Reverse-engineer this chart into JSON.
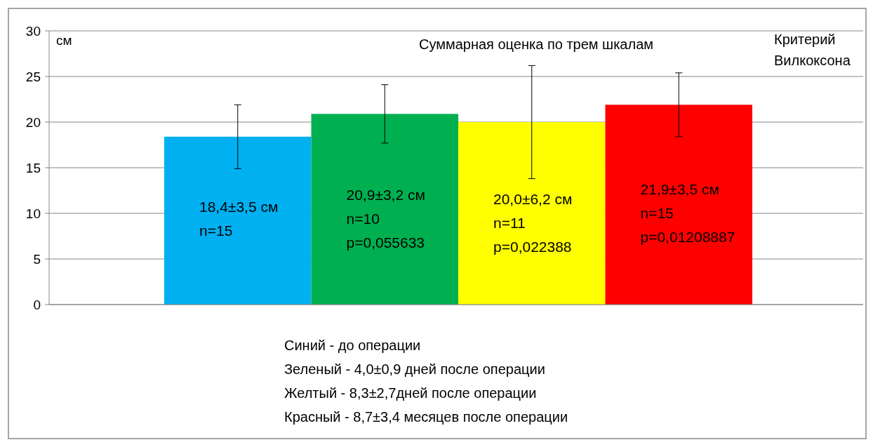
{
  "chart_data": {
    "type": "bar",
    "title": "Суммарная оценка по трем  шкалам",
    "ylabel": "см",
    "categories": [
      null,
      null,
      null,
      null
    ],
    "values": [
      18.4,
      20.9,
      20.0,
      21.9
    ],
    "colors": [
      "#00b0f0",
      "#00b050",
      "#ffff00",
      "#ff0000"
    ],
    "errors": [
      3.5,
      3.2,
      6.2,
      3.5
    ],
    "value_labels": [
      "18,4±3,5 см\nn=15",
      "20,9±3,2 см\nn=10\np=0,055633",
      "20,0±6,2 см\nn=11\np=0,022388",
      "21,9±3,5 см\nn=15\np=0,01208887"
    ],
    "ylim": [
      0,
      30
    ],
    "yticks": [
      0,
      5,
      10,
      15,
      20,
      25,
      30
    ],
    "grid": "y",
    "annotations": [
      "Критерий\nВилкоксона",
      "Синий - до операции\nЗеленый - 4,0±0,9 дней после операции\nЖелтый - 8,3±2,7дней после операции\nКрасный - 8,7±3,4 месяцев  после операции"
    ]
  }
}
